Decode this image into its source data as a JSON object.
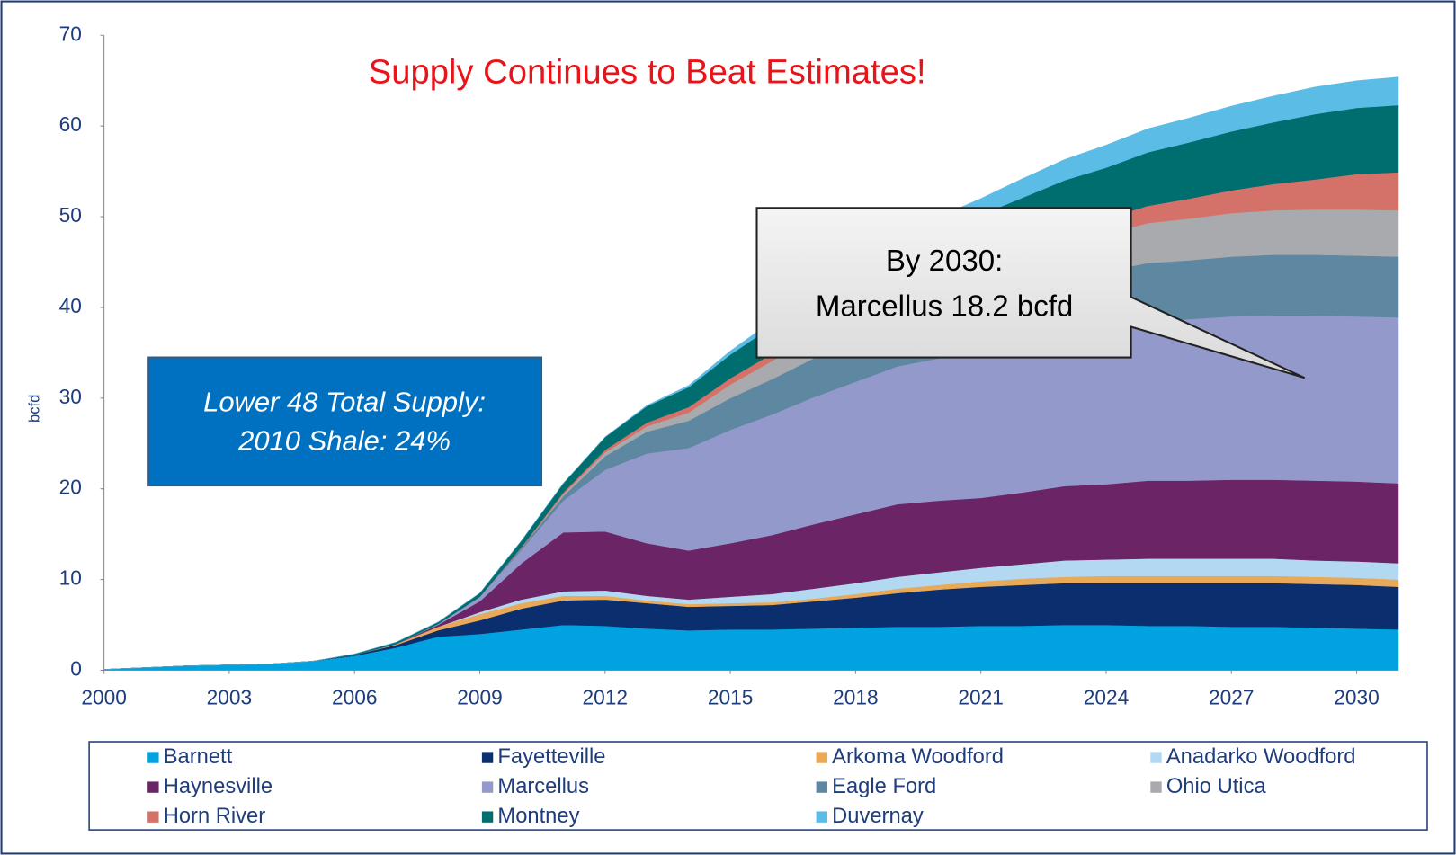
{
  "chart_data": {
    "type": "stacked_area",
    "title": "Supply Continues to Beat Estimates!",
    "y_label": "bcfd",
    "x": [
      2000,
      2001,
      2002,
      2003,
      2004,
      2005,
      2006,
      2007,
      2008,
      2009,
      2010,
      2011,
      2012,
      2013,
      2014,
      2015,
      2016,
      2017,
      2018,
      2019,
      2020,
      2021,
      2022,
      2023,
      2024,
      2025,
      2026,
      2027,
      2028,
      2029,
      2030,
      2031
    ],
    "xlim": [
      2000,
      2031
    ],
    "xticks": [
      2000,
      2003,
      2006,
      2009,
      2012,
      2015,
      2018,
      2021,
      2024,
      2027,
      2030
    ],
    "ylim": [
      0,
      70
    ],
    "yticks": [
      0,
      10,
      20,
      30,
      40,
      50,
      60,
      70
    ],
    "series": [
      {
        "name": "Barnett",
        "color": "#00a3e0",
        "values": [
          0.1,
          0.3,
          0.5,
          0.6,
          0.7,
          1.0,
          1.6,
          2.5,
          3.7,
          4.0,
          4.5,
          5.0,
          4.9,
          4.6,
          4.4,
          4.5,
          4.5,
          4.6,
          4.7,
          4.8,
          4.8,
          4.9,
          4.9,
          5.0,
          5.0,
          4.9,
          4.9,
          4.8,
          4.8,
          4.7,
          4.6,
          4.5
        ]
      },
      {
        "name": "Fayetteville",
        "color": "#0b2e6f",
        "values": [
          0,
          0,
          0,
          0,
          0,
          0,
          0.1,
          0.3,
          0.7,
          1.5,
          2.3,
          2.7,
          2.9,
          2.8,
          2.6,
          2.6,
          2.7,
          3.0,
          3.3,
          3.7,
          4.1,
          4.3,
          4.5,
          4.6,
          4.6,
          4.7,
          4.7,
          4.8,
          4.8,
          4.8,
          4.8,
          4.7
        ]
      },
      {
        "name": "Arkoma Woodford",
        "color": "#e8a958",
        "values": [
          0,
          0,
          0,
          0,
          0,
          0,
          0,
          0.1,
          0.4,
          0.7,
          0.6,
          0.5,
          0.4,
          0.3,
          0.3,
          0.3,
          0.3,
          0.3,
          0.4,
          0.5,
          0.5,
          0.6,
          0.7,
          0.7,
          0.8,
          0.8,
          0.8,
          0.8,
          0.8,
          0.8,
          0.8,
          0.8
        ]
      },
      {
        "name": "Anadarko Woodford",
        "color": "#b3d9f2",
        "values": [
          0,
          0,
          0,
          0,
          0,
          0,
          0,
          0,
          0,
          0.2,
          0.4,
          0.5,
          0.6,
          0.5,
          0.5,
          0.7,
          0.9,
          1.1,
          1.2,
          1.3,
          1.4,
          1.5,
          1.6,
          1.8,
          1.8,
          1.9,
          1.9,
          1.9,
          1.9,
          1.8,
          1.8,
          1.8
        ]
      },
      {
        "name": "Haynesville",
        "color": "#6b2566",
        "values": [
          0,
          0,
          0,
          0,
          0,
          0,
          0,
          0,
          0.2,
          1.2,
          4.0,
          6.5,
          6.5,
          5.8,
          5.4,
          5.9,
          6.5,
          7.1,
          7.6,
          8.0,
          7.9,
          7.7,
          7.9,
          8.2,
          8.3,
          8.6,
          8.6,
          8.7,
          8.7,
          8.8,
          8.8,
          8.8
        ]
      },
      {
        "name": "Marcellus",
        "color": "#9499cc",
        "values": [
          0,
          0,
          0,
          0,
          0,
          0,
          0,
          0,
          0.1,
          0.5,
          1.5,
          3.5,
          6.8,
          9.9,
          11.3,
          12.5,
          13.3,
          14.0,
          14.6,
          15.2,
          15.7,
          16.2,
          16.6,
          17.0,
          17.3,
          17.6,
          17.8,
          18.0,
          18.1,
          18.2,
          18.2,
          18.3
        ]
      },
      {
        "name": "Eagle Ford",
        "color": "#5e87a1",
        "values": [
          0,
          0,
          0,
          0,
          0,
          0,
          0,
          0,
          0,
          0,
          0.2,
          0.5,
          1.5,
          2.4,
          3.0,
          3.5,
          3.9,
          4.3,
          4.5,
          4.7,
          5.0,
          5.3,
          5.6,
          5.9,
          6.2,
          6.4,
          6.5,
          6.6,
          6.7,
          6.7,
          6.7,
          6.7
        ]
      },
      {
        "name": "Ohio Utica",
        "color": "#a8aaad",
        "values": [
          0,
          0,
          0,
          0,
          0,
          0,
          0,
          0,
          0,
          0,
          0,
          0.2,
          0.4,
          0.6,
          0.9,
          1.5,
          2.0,
          2.4,
          2.7,
          3.0,
          3.3,
          3.5,
          3.7,
          3.9,
          4.1,
          4.4,
          4.6,
          4.8,
          4.9,
          5.0,
          5.1,
          5.1
        ]
      },
      {
        "name": "Horn River",
        "color": "#d4726a",
        "values": [
          0,
          0,
          0,
          0,
          0,
          0,
          0,
          0,
          0,
          0,
          0.1,
          0.2,
          0.3,
          0.4,
          0.6,
          0.7,
          0.8,
          0.9,
          1.0,
          1.1,
          1.2,
          1.3,
          1.4,
          1.5,
          1.7,
          1.9,
          2.2,
          2.5,
          2.9,
          3.3,
          3.9,
          4.2
        ]
      },
      {
        "name": "Montney",
        "color": "#006d6f",
        "values": [
          0,
          0,
          0,
          0,
          0,
          0,
          0.1,
          0.2,
          0.2,
          0.4,
          0.7,
          1.0,
          1.4,
          1.8,
          2.2,
          2.6,
          3.0,
          3.4,
          3.8,
          4.2,
          4.6,
          4.9,
          5.2,
          5.4,
          5.6,
          5.9,
          6.2,
          6.5,
          6.8,
          7.2,
          7.3,
          7.4
        ]
      },
      {
        "name": "Duvernay",
        "color": "#5bbce6",
        "values": [
          0,
          0,
          0,
          0,
          0,
          0,
          0,
          0,
          0,
          0,
          0,
          0,
          0,
          0.1,
          0.2,
          0.4,
          0.6,
          0.8,
          1.0,
          1.2,
          1.5,
          1.8,
          2.1,
          2.3,
          2.5,
          2.6,
          2.7,
          2.8,
          2.9,
          3.0,
          3.0,
          3.1
        ]
      }
    ],
    "annotations": [
      {
        "lines": [
          "Lower 48 Total Supply:",
          "2010 Shale:  24%"
        ]
      },
      {
        "lines": [
          "By 2030:",
          "Marcellus  18.2 bcfd"
        ]
      }
    ]
  }
}
